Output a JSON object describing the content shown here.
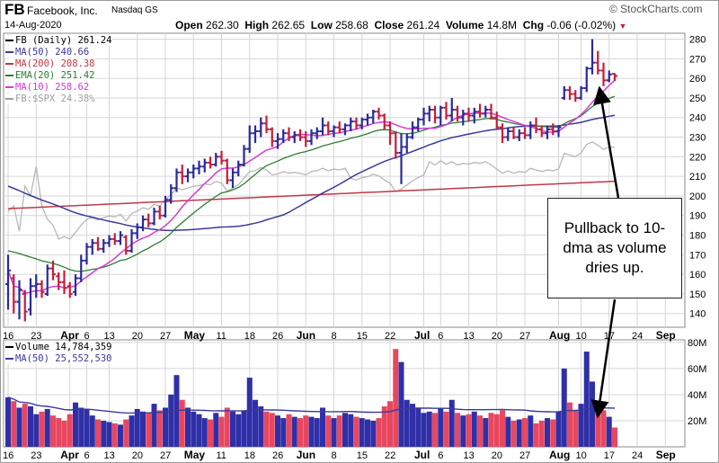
{
  "header": {
    "symbol": "FB",
    "company": "Facebook, Inc.",
    "exchange": "Nasdaq GS",
    "date": "14-Aug-2020",
    "brand": "© StockCharts.com",
    "open_label": "Open",
    "open": "262.30",
    "high_label": "High",
    "high": "262.65",
    "low_label": "Low",
    "low": "258.68",
    "close_label": "Close",
    "close": "261.24",
    "volume_label": "Volume",
    "volume": "14.8M",
    "chg_label": "Chg",
    "chg": "-0.06 (-0.02%)"
  },
  "price_legend": [
    {
      "text": "FB (Daily) 261.24",
      "color": "#000000"
    },
    {
      "text": "MA(50) 240.66",
      "color": "#3a3a9a"
    },
    {
      "text": "MA(200) 208.38",
      "color": "#c03848"
    },
    {
      "text": "EMA(20) 251.42",
      "color": "#2e7d32"
    },
    {
      "text": "MA(10) 258.62",
      "color": "#d63ad6"
    },
    {
      "text": "FB:$SPX 24.38%",
      "color": "#9e9e9e"
    }
  ],
  "volume_legend": [
    {
      "text": "Volume 14,784,359",
      "color": "#000000"
    },
    {
      "text": "MA(50) 25,552,530",
      "color": "#3a3a9a"
    }
  ],
  "annotation": "Pullback to 10-dma as volume dries up.",
  "colors": {
    "up": "#2a2a9e",
    "down": "#c41e3a",
    "vol_up": "#2f2fa8",
    "vol_down": "#e8475f",
    "grid": "#d6d6d6"
  },
  "chart_data": {
    "type": "ohlc",
    "price_axis": {
      "ticks": [
        140,
        150,
        160,
        170,
        180,
        190,
        200,
        210,
        220,
        230,
        240,
        250,
        260,
        270,
        280
      ],
      "ylim": [
        133,
        283
      ]
    },
    "volume_axis": {
      "ticks": [
        "20M",
        "40M",
        "60M",
        "80M"
      ],
      "tick_values": [
        20,
        40,
        60,
        80
      ],
      "ylim": [
        0,
        82
      ]
    },
    "x_ticks": [
      {
        "label": "16",
        "i": 0,
        "bold": false
      },
      {
        "label": "23",
        "i": 5,
        "bold": false
      },
      {
        "label": "Apr",
        "i": 11,
        "bold": true
      },
      {
        "label": "6",
        "i": 14,
        "bold": false
      },
      {
        "label": "13",
        "i": 18,
        "bold": false
      },
      {
        "label": "20",
        "i": 23,
        "bold": false
      },
      {
        "label": "27",
        "i": 28,
        "bold": false
      },
      {
        "label": "May",
        "i": 33,
        "bold": true
      },
      {
        "label": "11",
        "i": 38,
        "bold": false
      },
      {
        "label": "18",
        "i": 43,
        "bold": false
      },
      {
        "label": "26",
        "i": 48,
        "bold": false
      },
      {
        "label": "Jun",
        "i": 53,
        "bold": true
      },
      {
        "label": "8",
        "i": 58,
        "bold": false
      },
      {
        "label": "15",
        "i": 63,
        "bold": false
      },
      {
        "label": "22",
        "i": 68,
        "bold": false
      },
      {
        "label": "Jul",
        "i": 74,
        "bold": true
      },
      {
        "label": "6",
        "i": 77,
        "bold": false
      },
      {
        "label": "13",
        "i": 82,
        "bold": false
      },
      {
        "label": "20",
        "i": 87,
        "bold": false
      },
      {
        "label": "27",
        "i": 92,
        "bold": false
      },
      {
        "label": "Aug",
        "i": 98,
        "bold": true
      },
      {
        "label": "10",
        "i": 102,
        "bold": false
      },
      {
        "label": "17",
        "i": 107,
        "bold": false
      },
      {
        "label": "24",
        "i": 112,
        "bold": false
      },
      {
        "label": "Sep",
        "i": 117,
        "bold": true
      }
    ],
    "candles": [
      {
        "o": 155,
        "h": 170,
        "l": 142,
        "c": 162,
        "v": 38
      },
      {
        "o": 158,
        "h": 160,
        "l": 140,
        "c": 146,
        "v": 35
      },
      {
        "o": 146,
        "h": 157,
        "l": 137,
        "c": 152,
        "v": 30
      },
      {
        "o": 150,
        "h": 152,
        "l": 136,
        "c": 141,
        "v": 33
      },
      {
        "o": 142,
        "h": 158,
        "l": 139,
        "c": 154,
        "v": 31
      },
      {
        "o": 154,
        "h": 160,
        "l": 148,
        "c": 155,
        "v": 25
      },
      {
        "o": 155,
        "h": 157,
        "l": 148,
        "c": 151,
        "v": 27
      },
      {
        "o": 150,
        "h": 165,
        "l": 149,
        "c": 163,
        "v": 29
      },
      {
        "o": 163,
        "h": 167,
        "l": 157,
        "c": 160,
        "v": 24
      },
      {
        "o": 159,
        "h": 161,
        "l": 152,
        "c": 156,
        "v": 22
      },
      {
        "o": 156,
        "h": 162,
        "l": 150,
        "c": 153,
        "v": 20
      },
      {
        "o": 154,
        "h": 156,
        "l": 148,
        "c": 150,
        "v": 25
      },
      {
        "o": 151,
        "h": 160,
        "l": 149,
        "c": 158,
        "v": 34
      },
      {
        "o": 158,
        "h": 170,
        "l": 156,
        "c": 167,
        "v": 30
      },
      {
        "o": 167,
        "h": 176,
        "l": 165,
        "c": 174,
        "v": 29
      },
      {
        "o": 174,
        "h": 178,
        "l": 170,
        "c": 176,
        "v": 24
      },
      {
        "o": 176,
        "h": 179,
        "l": 172,
        "c": 173,
        "v": 21
      },
      {
        "o": 173,
        "h": 178,
        "l": 171,
        "c": 176,
        "v": 20
      },
      {
        "o": 176,
        "h": 180,
        "l": 174,
        "c": 178,
        "v": 19
      },
      {
        "o": 178,
        "h": 181,
        "l": 175,
        "c": 177,
        "v": 18
      },
      {
        "o": 177,
        "h": 182,
        "l": 175,
        "c": 180,
        "v": 17
      },
      {
        "o": 179,
        "h": 180,
        "l": 170,
        "c": 172,
        "v": 21
      },
      {
        "o": 172,
        "h": 183,
        "l": 171,
        "c": 181,
        "v": 24
      },
      {
        "o": 181,
        "h": 186,
        "l": 178,
        "c": 184,
        "v": 29
      },
      {
        "o": 184,
        "h": 190,
        "l": 182,
        "c": 188,
        "v": 27
      },
      {
        "o": 188,
        "h": 191,
        "l": 184,
        "c": 186,
        "v": 26
      },
      {
        "o": 186,
        "h": 194,
        "l": 185,
        "c": 192,
        "v": 33
      },
      {
        "o": 192,
        "h": 195,
        "l": 188,
        "c": 190,
        "v": 28
      },
      {
        "o": 190,
        "h": 200,
        "l": 189,
        "c": 198,
        "v": 30
      },
      {
        "o": 198,
        "h": 206,
        "l": 196,
        "c": 204,
        "v": 40
      },
      {
        "o": 204,
        "h": 214,
        "l": 202,
        "c": 212,
        "v": 55
      },
      {
        "o": 212,
        "h": 216,
        "l": 206,
        "c": 210,
        "v": 36
      },
      {
        "o": 210,
        "h": 214,
        "l": 207,
        "c": 212,
        "v": 30
      },
      {
        "o": 212,
        "h": 216,
        "l": 209,
        "c": 214,
        "v": 27
      },
      {
        "o": 214,
        "h": 218,
        "l": 211,
        "c": 215,
        "v": 25
      },
      {
        "o": 215,
        "h": 219,
        "l": 212,
        "c": 217,
        "v": 22
      },
      {
        "o": 217,
        "h": 220,
        "l": 214,
        "c": 216,
        "v": 21
      },
      {
        "o": 216,
        "h": 222,
        "l": 215,
        "c": 220,
        "v": 26
      },
      {
        "o": 220,
        "h": 223,
        "l": 216,
        "c": 218,
        "v": 23
      },
      {
        "o": 218,
        "h": 219,
        "l": 206,
        "c": 208,
        "v": 30
      },
      {
        "o": 208,
        "h": 214,
        "l": 204,
        "c": 212,
        "v": 27
      },
      {
        "o": 212,
        "h": 218,
        "l": 210,
        "c": 216,
        "v": 25
      },
      {
        "o": 216,
        "h": 226,
        "l": 215,
        "c": 224,
        "v": 28
      },
      {
        "o": 224,
        "h": 236,
        "l": 222,
        "c": 232,
        "v": 53
      },
      {
        "o": 232,
        "h": 236,
        "l": 227,
        "c": 233,
        "v": 36
      },
      {
        "o": 233,
        "h": 240,
        "l": 230,
        "c": 237,
        "v": 31
      },
      {
        "o": 237,
        "h": 241,
        "l": 232,
        "c": 234,
        "v": 27
      },
      {
        "o": 234,
        "h": 235,
        "l": 225,
        "c": 228,
        "v": 26
      },
      {
        "o": 228,
        "h": 232,
        "l": 224,
        "c": 229,
        "v": 24
      },
      {
        "o": 229,
        "h": 234,
        "l": 227,
        "c": 232,
        "v": 22
      },
      {
        "o": 232,
        "h": 235,
        "l": 228,
        "c": 230,
        "v": 25
      },
      {
        "o": 230,
        "h": 233,
        "l": 227,
        "c": 231,
        "v": 23
      },
      {
        "o": 231,
        "h": 234,
        "l": 228,
        "c": 230,
        "v": 22
      },
      {
        "o": 230,
        "h": 233,
        "l": 225,
        "c": 228,
        "v": 24
      },
      {
        "o": 228,
        "h": 234,
        "l": 226,
        "c": 232,
        "v": 23
      },
      {
        "o": 232,
        "h": 235,
        "l": 229,
        "c": 233,
        "v": 22
      },
      {
        "o": 233,
        "h": 240,
        "l": 231,
        "c": 236,
        "v": 30
      },
      {
        "o": 236,
        "h": 238,
        "l": 231,
        "c": 233,
        "v": 24
      },
      {
        "o": 233,
        "h": 236,
        "l": 230,
        "c": 235,
        "v": 22
      },
      {
        "o": 235,
        "h": 238,
        "l": 232,
        "c": 234,
        "v": 24
      },
      {
        "o": 234,
        "h": 237,
        "l": 231,
        "c": 236,
        "v": 26
      },
      {
        "o": 236,
        "h": 240,
        "l": 233,
        "c": 238,
        "v": 25
      },
      {
        "o": 238,
        "h": 240,
        "l": 234,
        "c": 236,
        "v": 23
      },
      {
        "o": 236,
        "h": 240,
        "l": 234,
        "c": 239,
        "v": 22
      },
      {
        "o": 239,
        "h": 242,
        "l": 236,
        "c": 240,
        "v": 21
      },
      {
        "o": 240,
        "h": 244,
        "l": 237,
        "c": 243,
        "v": 20
      },
      {
        "o": 243,
        "h": 245,
        "l": 239,
        "c": 241,
        "v": 22
      },
      {
        "o": 241,
        "h": 242,
        "l": 234,
        "c": 236,
        "v": 31
      },
      {
        "o": 236,
        "h": 238,
        "l": 226,
        "c": 232,
        "v": 35
      },
      {
        "o": 232,
        "h": 233,
        "l": 219,
        "c": 222,
        "v": 75
      },
      {
        "o": 222,
        "h": 232,
        "l": 206,
        "c": 225,
        "v": 65
      },
      {
        "o": 225,
        "h": 232,
        "l": 222,
        "c": 230,
        "v": 36
      },
      {
        "o": 230,
        "h": 238,
        "l": 229,
        "c": 235,
        "v": 33
      },
      {
        "o": 235,
        "h": 240,
        "l": 233,
        "c": 239,
        "v": 30
      },
      {
        "o": 239,
        "h": 245,
        "l": 236,
        "c": 242,
        "v": 26
      },
      {
        "o": 242,
        "h": 246,
        "l": 238,
        "c": 244,
        "v": 27
      },
      {
        "o": 244,
        "h": 246,
        "l": 237,
        "c": 240,
        "v": 26
      },
      {
        "o": 240,
        "h": 246,
        "l": 236,
        "c": 245,
        "v": 30
      },
      {
        "o": 245,
        "h": 248,
        "l": 239,
        "c": 241,
        "v": 27
      },
      {
        "o": 241,
        "h": 250,
        "l": 238,
        "c": 244,
        "v": 36
      },
      {
        "o": 244,
        "h": 246,
        "l": 238,
        "c": 240,
        "v": 26
      },
      {
        "o": 240,
        "h": 244,
        "l": 236,
        "c": 242,
        "v": 24
      },
      {
        "o": 242,
        "h": 245,
        "l": 238,
        "c": 241,
        "v": 25
      },
      {
        "o": 241,
        "h": 245,
        "l": 237,
        "c": 243,
        "v": 27
      },
      {
        "o": 243,
        "h": 247,
        "l": 240,
        "c": 242,
        "v": 24
      },
      {
        "o": 242,
        "h": 246,
        "l": 240,
        "c": 244,
        "v": 22
      },
      {
        "o": 244,
        "h": 247,
        "l": 239,
        "c": 240,
        "v": 26
      },
      {
        "o": 240,
        "h": 243,
        "l": 234,
        "c": 235,
        "v": 25
      },
      {
        "o": 235,
        "h": 237,
        "l": 227,
        "c": 230,
        "v": 28
      },
      {
        "o": 230,
        "h": 235,
        "l": 228,
        "c": 233,
        "v": 23
      },
      {
        "o": 233,
        "h": 235,
        "l": 229,
        "c": 230,
        "v": 20
      },
      {
        "o": 230,
        "h": 234,
        "l": 228,
        "c": 232,
        "v": 21
      },
      {
        "o": 232,
        "h": 235,
        "l": 229,
        "c": 231,
        "v": 22
      },
      {
        "o": 231,
        "h": 238,
        "l": 229,
        "c": 236,
        "v": 24
      },
      {
        "o": 236,
        "h": 240,
        "l": 232,
        "c": 234,
        "v": 18
      },
      {
        "o": 234,
        "h": 236,
        "l": 230,
        "c": 232,
        "v": 20
      },
      {
        "o": 232,
        "h": 236,
        "l": 229,
        "c": 234,
        "v": 22
      },
      {
        "o": 234,
        "h": 237,
        "l": 231,
        "c": 233,
        "v": 21
      },
      {
        "o": 233,
        "h": 236,
        "l": 230,
        "c": 235,
        "v": 27
      },
      {
        "o": 250,
        "h": 256,
        "l": 249,
        "c": 254,
        "v": 60
      },
      {
        "o": 254,
        "h": 256,
        "l": 249,
        "c": 252,
        "v": 34
      },
      {
        "o": 252,
        "h": 254,
        "l": 248,
        "c": 250,
        "v": 28
      },
      {
        "o": 250,
        "h": 256,
        "l": 249,
        "c": 255,
        "v": 33
      },
      {
        "o": 255,
        "h": 266,
        "l": 253,
        "c": 265,
        "v": 73
      },
      {
        "o": 265,
        "h": 280,
        "l": 262,
        "c": 268,
        "v": 50
      },
      {
        "o": 268,
        "h": 274,
        "l": 262,
        "c": 264,
        "v": 33
      },
      {
        "o": 264,
        "h": 268,
        "l": 256,
        "c": 259,
        "v": 28
      },
      {
        "o": 259,
        "h": 264,
        "l": 258,
        "c": 262,
        "v": 23
      },
      {
        "o": 262.3,
        "h": 262.65,
        "l": 258.68,
        "c": 261.24,
        "v": 14.8
      }
    ]
  }
}
